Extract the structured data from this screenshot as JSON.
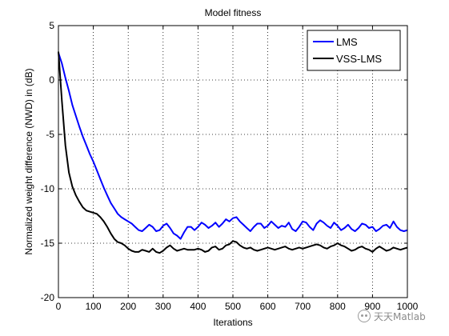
{
  "chart_data": {
    "type": "line",
    "title": "Model fitness",
    "xlabel": "Iterations",
    "ylabel": "Normalized weight difference (NWD) in (dB)",
    "xlim": [
      0,
      1000
    ],
    "ylim": [
      -20,
      5
    ],
    "xticks": [
      0,
      100,
      200,
      300,
      400,
      500,
      600,
      700,
      800,
      900,
      1000
    ],
    "yticks": [
      -20,
      -15,
      -10,
      -5,
      0,
      5
    ],
    "grid": true,
    "legend_position": "top-right",
    "series": [
      {
        "name": "LMS",
        "color": "#0000ff",
        "x": [
          0,
          10,
          20,
          30,
          40,
          50,
          60,
          70,
          80,
          90,
          100,
          110,
          120,
          130,
          140,
          150,
          160,
          170,
          180,
          190,
          200,
          210,
          220,
          230,
          240,
          250,
          260,
          270,
          280,
          290,
          300,
          310,
          320,
          330,
          340,
          350,
          360,
          370,
          380,
          390,
          400,
          410,
          420,
          430,
          440,
          450,
          460,
          470,
          480,
          490,
          500,
          510,
          520,
          530,
          540,
          550,
          560,
          570,
          580,
          590,
          600,
          610,
          620,
          630,
          640,
          650,
          660,
          670,
          680,
          690,
          700,
          710,
          720,
          730,
          740,
          750,
          760,
          770,
          780,
          790,
          800,
          810,
          820,
          830,
          840,
          850,
          860,
          870,
          880,
          890,
          900,
          910,
          920,
          930,
          940,
          950,
          960,
          970,
          980,
          990,
          1000
        ],
        "y": [
          2.5,
          1.5,
          0.2,
          -1.0,
          -2.3,
          -3.3,
          -4.3,
          -5.2,
          -6.0,
          -6.8,
          -7.5,
          -8.3,
          -9.1,
          -9.9,
          -10.6,
          -11.3,
          -11.8,
          -12.3,
          -12.6,
          -12.8,
          -13.0,
          -13.2,
          -13.5,
          -13.8,
          -13.9,
          -13.6,
          -13.3,
          -13.5,
          -13.9,
          -13.8,
          -13.4,
          -13.2,
          -13.6,
          -14.1,
          -14.3,
          -14.6,
          -14.0,
          -13.5,
          -13.5,
          -13.8,
          -13.5,
          -13.1,
          -13.3,
          -13.6,
          -13.4,
          -13.1,
          -13.5,
          -13.2,
          -12.8,
          -13.0,
          -12.7,
          -12.6,
          -13.0,
          -13.3,
          -13.6,
          -13.9,
          -13.5,
          -13.2,
          -13.2,
          -13.6,
          -13.4,
          -13.0,
          -13.3,
          -13.6,
          -13.4,
          -13.5,
          -13.1,
          -13.7,
          -13.9,
          -13.5,
          -13.0,
          -13.1,
          -13.5,
          -13.8,
          -13.2,
          -12.9,
          -13.1,
          -13.4,
          -13.6,
          -13.1,
          -13.4,
          -13.8,
          -13.6,
          -13.3,
          -13.7,
          -13.9,
          -13.6,
          -13.2,
          -13.3,
          -13.6,
          -13.5,
          -13.9,
          -13.7,
          -13.4,
          -13.3,
          -13.6,
          -13.0,
          -13.5,
          -13.8,
          -13.9,
          -13.8
        ]
      },
      {
        "name": "VSS-LMS",
        "color": "#000000",
        "x": [
          0,
          10,
          20,
          30,
          40,
          50,
          60,
          70,
          80,
          90,
          100,
          110,
          120,
          130,
          140,
          150,
          160,
          170,
          180,
          190,
          200,
          210,
          220,
          230,
          240,
          250,
          260,
          270,
          280,
          290,
          300,
          310,
          320,
          330,
          340,
          350,
          360,
          370,
          380,
          390,
          400,
          410,
          420,
          430,
          440,
          450,
          460,
          470,
          480,
          490,
          500,
          510,
          520,
          530,
          540,
          550,
          560,
          570,
          580,
          590,
          600,
          610,
          620,
          630,
          640,
          650,
          660,
          670,
          680,
          690,
          700,
          710,
          720,
          730,
          740,
          750,
          760,
          770,
          780,
          790,
          800,
          810,
          820,
          830,
          840,
          850,
          860,
          870,
          880,
          890,
          900,
          910,
          920,
          930,
          940,
          950,
          960,
          970,
          980,
          990,
          1000
        ],
        "y": [
          2.6,
          -2.0,
          -6.0,
          -8.5,
          -9.8,
          -10.6,
          -11.2,
          -11.7,
          -12.0,
          -12.1,
          -12.2,
          -12.3,
          -12.6,
          -13.0,
          -13.5,
          -14.1,
          -14.6,
          -14.9,
          -15.0,
          -15.2,
          -15.5,
          -15.7,
          -15.8,
          -15.8,
          -15.6,
          -15.7,
          -15.8,
          -15.5,
          -15.8,
          -15.9,
          -15.7,
          -15.4,
          -15.2,
          -15.5,
          -15.7,
          -15.6,
          -15.5,
          -15.6,
          -15.6,
          -15.6,
          -15.5,
          -15.6,
          -15.8,
          -15.7,
          -15.4,
          -15.3,
          -15.6,
          -15.5,
          -15.2,
          -15.1,
          -14.8,
          -14.9,
          -15.2,
          -15.4,
          -15.5,
          -15.4,
          -15.6,
          -15.7,
          -15.6,
          -15.5,
          -15.4,
          -15.5,
          -15.6,
          -15.5,
          -15.4,
          -15.3,
          -15.5,
          -15.6,
          -15.5,
          -15.4,
          -15.5,
          -15.4,
          -15.3,
          -15.2,
          -15.1,
          -15.2,
          -15.4,
          -15.5,
          -15.3,
          -15.2,
          -15.0,
          -15.2,
          -15.3,
          -15.5,
          -15.7,
          -15.6,
          -15.4,
          -15.3,
          -15.5,
          -15.6,
          -15.8,
          -15.5,
          -15.3,
          -15.5,
          -15.7,
          -15.6,
          -15.4,
          -15.5,
          -15.6,
          -15.5,
          -15.4
        ]
      }
    ]
  },
  "watermark": {
    "text": "天天Matlab",
    "icon": "wechat-icon"
  }
}
